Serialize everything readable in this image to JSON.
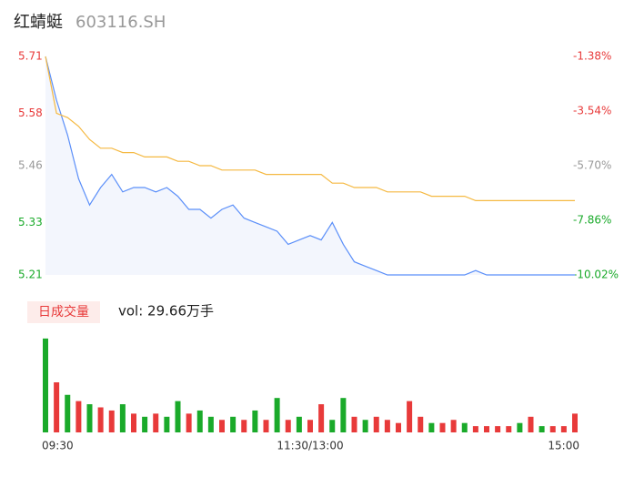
{
  "header": {
    "name": "红蜻蜓",
    "code": "603116.SH"
  },
  "chart_data": [
    {
      "type": "line",
      "x": [
        0,
        5,
        10,
        15,
        20,
        25,
        30,
        35,
        40,
        45,
        50,
        55,
        60,
        65,
        70,
        75,
        80,
        85,
        90,
        95,
        100,
        105,
        110,
        115,
        120,
        125,
        130,
        135,
        140,
        145,
        150,
        155,
        160,
        165,
        170,
        175,
        180,
        185,
        190,
        195,
        200,
        205,
        210,
        215,
        220,
        225,
        230,
        235,
        240
      ],
      "xlim": [
        0,
        240
      ],
      "ylim": [
        5.21,
        5.71
      ],
      "yticks": [
        5.71,
        5.58,
        5.46,
        5.33,
        5.21
      ],
      "ytick_colors": [
        "#e83a3a",
        "#e83a3a",
        "#999999",
        "#1aaa2a",
        "#1aaa2a"
      ],
      "y2lim": [
        -10.02,
        -1.38
      ],
      "y2ticks": [
        {
          "value": -1.38,
          "label": "-1.38%"
        },
        {
          "value": -3.54,
          "label": "-3.54%"
        },
        {
          "value": -5.7,
          "label": "-5.70%"
        },
        {
          "value": -7.86,
          "label": "-7.86%"
        },
        {
          "value": -10.02,
          "label": "-10.02%"
        }
      ],
      "series": [
        {
          "color": "#5b8ff9",
          "area_color": "#f3f6fd",
          "values": [
            5.71,
            5.61,
            5.53,
            5.43,
            5.37,
            5.41,
            5.44,
            5.4,
            5.41,
            5.41,
            5.4,
            5.41,
            5.39,
            5.36,
            5.36,
            5.34,
            5.36,
            5.37,
            5.34,
            5.33,
            5.32,
            5.31,
            5.28,
            5.29,
            5.3,
            5.29,
            5.33,
            5.28,
            5.24,
            5.23,
            5.22,
            5.21,
            5.21,
            5.21,
            5.21,
            5.21,
            5.21,
            5.21,
            5.21,
            5.22,
            5.21,
            5.21,
            5.21,
            5.21,
            5.21,
            5.21,
            5.21,
            5.21,
            5.21
          ]
        },
        {
          "color": "#f5b942",
          "values": [
            5.71,
            5.58,
            5.57,
            5.55,
            5.52,
            5.5,
            5.5,
            5.49,
            5.49,
            5.48,
            5.48,
            5.48,
            5.47,
            5.47,
            5.46,
            5.46,
            5.45,
            5.45,
            5.45,
            5.45,
            5.44,
            5.44,
            5.44,
            5.44,
            5.44,
            5.44,
            5.42,
            5.42,
            5.41,
            5.41,
            5.41,
            5.4,
            5.4,
            5.4,
            5.4,
            5.39,
            5.39,
            5.39,
            5.39,
            5.38,
            5.38,
            5.38,
            5.38,
            5.38,
            5.38,
            5.38,
            5.38,
            5.38,
            5.38
          ]
        }
      ]
    },
    {
      "type": "bar",
      "title": "日成交量",
      "subtitle": "vol: 29.66万手",
      "x": [
        0,
        5,
        10,
        15,
        20,
        25,
        30,
        35,
        40,
        45,
        50,
        55,
        60,
        65,
        70,
        75,
        80,
        85,
        90,
        95,
        100,
        105,
        110,
        115,
        120,
        125,
        130,
        135,
        140,
        145,
        150,
        155,
        160,
        165,
        170,
        175,
        180,
        185,
        190,
        195,
        200,
        205,
        210,
        215,
        220,
        225,
        230,
        235,
        240
      ],
      "xlim": [
        0,
        240
      ],
      "xticks": [
        {
          "value": 0,
          "label": "09:30"
        },
        {
          "value": 120,
          "label": "11:30/13:00"
        },
        {
          "value": 240,
          "label": "15:00"
        }
      ],
      "ylim": [
        0,
        3.2
      ],
      "values": [
        3.0,
        1.6,
        1.2,
        1.0,
        0.9,
        0.8,
        0.7,
        0.9,
        0.6,
        0.5,
        0.6,
        0.5,
        1.0,
        0.6,
        0.7,
        0.5,
        0.4,
        0.5,
        0.4,
        0.7,
        0.4,
        1.1,
        0.4,
        0.5,
        0.4,
        0.9,
        0.4,
        1.1,
        0.5,
        0.4,
        0.5,
        0.4,
        0.3,
        1.0,
        0.5,
        0.3,
        0.3,
        0.4,
        0.3,
        0.2,
        0.2,
        0.2,
        0.2,
        0.3,
        0.5,
        0.2,
        0.2,
        0.2,
        0.6
      ],
      "colors": [
        "#1aaa2a",
        "#e83a3a",
        "#1aaa2a",
        "#e83a3a",
        "#1aaa2a",
        "#e83a3a",
        "#e83a3a",
        "#1aaa2a",
        "#e83a3a",
        "#1aaa2a",
        "#e83a3a",
        "#1aaa2a",
        "#1aaa2a",
        "#e83a3a",
        "#1aaa2a",
        "#1aaa2a",
        "#e83a3a",
        "#1aaa2a",
        "#e83a3a",
        "#1aaa2a",
        "#e83a3a",
        "#1aaa2a",
        "#e83a3a",
        "#1aaa2a",
        "#e83a3a",
        "#e83a3a",
        "#1aaa2a",
        "#1aaa2a",
        "#e83a3a",
        "#1aaa2a",
        "#e83a3a",
        "#e83a3a",
        "#e83a3a",
        "#e83a3a",
        "#e83a3a",
        "#1aaa2a",
        "#e83a3a",
        "#e83a3a",
        "#1aaa2a",
        "#e83a3a",
        "#e83a3a",
        "#e83a3a",
        "#e83a3a",
        "#1aaa2a",
        "#e83a3a",
        "#1aaa2a",
        "#e83a3a",
        "#e83a3a",
        "#e83a3a"
      ]
    }
  ]
}
